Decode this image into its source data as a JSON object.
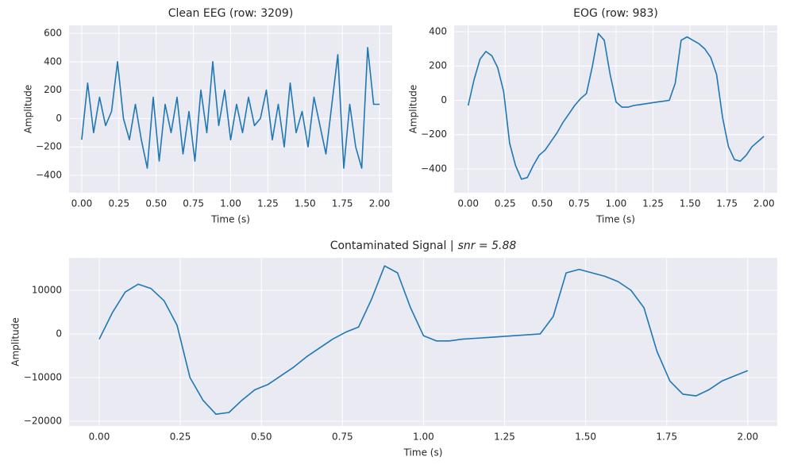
{
  "chart_data": [
    {
      "type": "line",
      "title": "Clean EEG (row: 3209)",
      "xlabel": "Time (s)",
      "ylabel": "Amplitude",
      "color": "#1f77b4",
      "grid": true,
      "x": [
        0,
        0.04,
        0.08,
        0.12,
        0.16,
        0.2,
        0.24,
        0.28,
        0.32,
        0.36,
        0.4,
        0.44,
        0.48,
        0.52,
        0.56,
        0.6,
        0.64,
        0.68,
        0.72,
        0.76,
        0.8,
        0.84,
        0.88,
        0.92,
        0.96,
        1,
        1.04,
        1.08,
        1.12,
        1.16,
        1.2,
        1.24,
        1.28,
        1.32,
        1.36,
        1.4,
        1.44,
        1.48,
        1.52,
        1.56,
        1.6,
        1.64,
        1.68,
        1.72,
        1.76,
        1.8,
        1.84,
        1.88,
        1.92,
        1.96,
        2
      ],
      "values": [
        -150,
        250,
        -100,
        150,
        -50,
        50,
        400,
        0,
        -150,
        100,
        -150,
        -350,
        150,
        -300,
        100,
        -100,
        150,
        -250,
        50,
        -300,
        200,
        -100,
        400,
        -50,
        200,
        -150,
        100,
        -100,
        150,
        -50,
        0,
        200,
        -150,
        100,
        -200,
        250,
        -100,
        50,
        -200,
        150,
        -50,
        -250,
        100,
        450,
        -350,
        100,
        -200,
        -350,
        500,
        100,
        100
      ],
      "xlim": [
        -0.085,
        2.085
      ],
      "ylim": [
        -523,
        656
      ],
      "xticks": [
        {
          "value": 0,
          "label": "0.00"
        },
        {
          "value": 0.25,
          "label": "0.25"
        },
        {
          "value": 0.5,
          "label": "0.50"
        },
        {
          "value": 0.75,
          "label": "0.75"
        },
        {
          "value": 1,
          "label": "1.00"
        },
        {
          "value": 1.25,
          "label": "1.25"
        },
        {
          "value": 1.5,
          "label": "1.50"
        },
        {
          "value": 1.75,
          "label": "1.75"
        },
        {
          "value": 2,
          "label": "2.00"
        }
      ],
      "yticks": [
        {
          "value": -400,
          "label": "−400"
        },
        {
          "value": -200,
          "label": "−200"
        },
        0,
        200,
        400,
        600
      ]
    },
    {
      "type": "line",
      "title": "EOG (row: 983)",
      "xlabel": "Time (s)",
      "ylabel": "Amplitude",
      "color": "#1f77b4",
      "grid": true,
      "x": [
        0,
        0.04,
        0.08,
        0.12,
        0.16,
        0.2,
        0.24,
        0.28,
        0.32,
        0.36,
        0.4,
        0.44,
        0.48,
        0.52,
        0.56,
        0.6,
        0.64,
        0.68,
        0.72,
        0.76,
        0.8,
        0.84,
        0.88,
        0.92,
        0.96,
        1,
        1.04,
        1.08,
        1.12,
        1.16,
        1.2,
        1.24,
        1.28,
        1.32,
        1.36,
        1.4,
        1.44,
        1.48,
        1.52,
        1.56,
        1.6,
        1.64,
        1.68,
        1.72,
        1.76,
        1.8,
        1.84,
        1.88,
        1.92,
        1.96,
        2
      ],
      "values": [
        -30,
        120,
        240,
        285,
        260,
        190,
        50,
        -250,
        -380,
        -460,
        -450,
        -380,
        -320,
        -290,
        -240,
        -190,
        -130,
        -80,
        -30,
        10,
        40,
        200,
        390,
        350,
        150,
        -10,
        -40,
        -40,
        -30,
        -25,
        -20,
        -15,
        -10,
        -5,
        0,
        100,
        350,
        370,
        350,
        330,
        300,
        250,
        150,
        -100,
        -270,
        -345,
        -355,
        -320,
        -270,
        -240,
        -210
      ],
      "xlim": [
        -0.095,
        2.09
      ],
      "ylim": [
        -539,
        437
      ],
      "xticks": [
        {
          "value": 0,
          "label": "0.00"
        },
        {
          "value": 0.25,
          "label": "0.25"
        },
        {
          "value": 0.5,
          "label": "0.50"
        },
        {
          "value": 0.75,
          "label": "0.75"
        },
        {
          "value": 1,
          "label": "1.00"
        },
        {
          "value": 1.25,
          "label": "1.25"
        },
        {
          "value": 1.5,
          "label": "1.50"
        },
        {
          "value": 1.75,
          "label": "1.75"
        },
        {
          "value": 2,
          "label": "2.00"
        }
      ],
      "yticks": [
        {
          "value": -400,
          "label": "−400"
        },
        {
          "value": -200,
          "label": "−200"
        },
        0,
        200,
        400
      ]
    },
    {
      "type": "line",
      "title": "Contaminated Signal |",
      "title_math": "snr = 5.88",
      "xlabel": "Time (s)",
      "ylabel": "Amplitude",
      "color": "#1f77b4",
      "grid": true,
      "x": [
        0,
        0.04,
        0.08,
        0.12,
        0.16,
        0.2,
        0.24,
        0.28,
        0.32,
        0.36,
        0.4,
        0.44,
        0.48,
        0.52,
        0.56,
        0.6,
        0.64,
        0.68,
        0.72,
        0.76,
        0.8,
        0.84,
        0.88,
        0.92,
        0.96,
        1,
        1.04,
        1.08,
        1.12,
        1.16,
        1.2,
        1.24,
        1.28,
        1.32,
        1.36,
        1.4,
        1.44,
        1.48,
        1.52,
        1.56,
        1.6,
        1.64,
        1.68,
        1.72,
        1.76,
        1.8,
        1.84,
        1.88,
        1.92,
        1.96,
        2
      ],
      "values": [
        -1200,
        4800,
        9600,
        11400,
        10400,
        7600,
        2000,
        -10000,
        -15200,
        -18400,
        -18000,
        -15200,
        -12800,
        -11600,
        -9600,
        -7600,
        -5200,
        -3200,
        -1200,
        400,
        1600,
        8000,
        15600,
        14000,
        6000,
        -400,
        -1600,
        -1600,
        -1200,
        -1000,
        -800,
        -600,
        -400,
        -200,
        0,
        4000,
        14000,
        14800,
        14000,
        13200,
        12000,
        10000,
        6000,
        -4000,
        -10800,
        -13800,
        -14200,
        -12800,
        -10800,
        -9600,
        -8400
      ],
      "xlim": [
        -0.093,
        2.091
      ],
      "ylim": [
        -21091,
        17455
      ],
      "xticks": [
        {
          "value": 0,
          "label": "0.00"
        },
        {
          "value": 0.25,
          "label": "0.25"
        },
        {
          "value": 0.5,
          "label": "0.50"
        },
        {
          "value": 0.75,
          "label": "0.75"
        },
        {
          "value": 1,
          "label": "1.00"
        },
        {
          "value": 1.25,
          "label": "1.25"
        },
        {
          "value": 1.5,
          "label": "1.50"
        },
        {
          "value": 1.75,
          "label": "1.75"
        },
        {
          "value": 2,
          "label": "2.00"
        }
      ],
      "yticks": [
        {
          "value": -20000,
          "label": "−20000"
        },
        {
          "value": -10000,
          "label": "−10000"
        },
        0,
        10000
      ]
    }
  ]
}
